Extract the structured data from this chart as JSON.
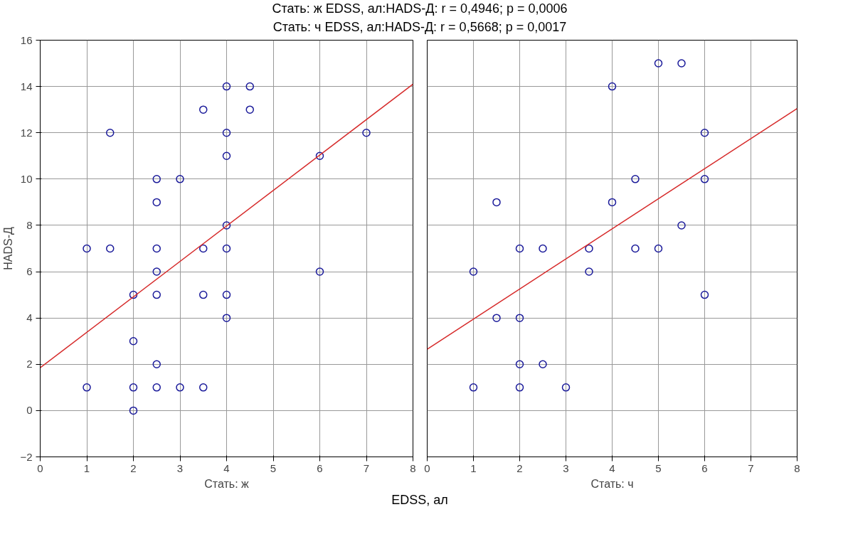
{
  "chart_data": [
    {
      "type": "scatter",
      "title": "Стать: ж  EDSS,  ал:HADS-Д:   r = 0,4946; p = 0,0006",
      "subtitle": "Стать: ч  EDSS,  ал:HADS-Д:   r = 0,5668; p = 0,0017",
      "xlabel": "Стать: ж",
      "ylabel": "HADS-Д",
      "annotations": [
        "EDSS,  ал"
      ],
      "xlim": [
        0,
        8
      ],
      "ylim": [
        -2,
        16
      ],
      "xticks": [
        0,
        1,
        2,
        3,
        4,
        5,
        6,
        7,
        8
      ],
      "yticks": [
        -2,
        0,
        2,
        4,
        6,
        8,
        10,
        12,
        14,
        16
      ],
      "grid": true,
      "series": [
        {
          "marker": "circle",
          "color": "#1a1a9a",
          "x": [
            1,
            1.5,
            1.5,
            1,
            2,
            2,
            2,
            2,
            2.5,
            2.5,
            2.5,
            2.5,
            2.5,
            2.5,
            2.5,
            3,
            3,
            3.5,
            3.5,
            3.5,
            3.5,
            4,
            4,
            4,
            4,
            4,
            4,
            4,
            4.5,
            4.5,
            6,
            6,
            7
          ],
          "values": [
            7,
            7,
            12,
            1,
            5,
            3,
            1,
            0,
            10,
            9,
            7,
            6,
            5,
            2,
            1,
            10,
            1,
            13,
            7,
            5,
            1,
            14,
            12,
            11,
            8,
            7,
            5,
            4,
            14,
            13,
            11,
            6,
            12
          ]
        },
        {
          "type": "line",
          "marker": "none",
          "color": "#d62a2a",
          "x": [
            0,
            8
          ],
          "values": [
            1.85,
            14.1
          ]
        }
      ]
    },
    {
      "type": "scatter",
      "xlabel": "Стать: ч",
      "xlim": [
        0,
        8
      ],
      "ylim": [
        -2,
        16
      ],
      "xticks": [
        0,
        1,
        2,
        3,
        4,
        5,
        6,
        7,
        8
      ],
      "yticks": [
        -2,
        0,
        2,
        4,
        6,
        8,
        10,
        12,
        14,
        16
      ],
      "tick_labels": "x",
      "grid": true,
      "series": [
        {
          "marker": "circle",
          "color": "#1a1a9a",
          "x": [
            1,
            1,
            1.5,
            1.5,
            2,
            2,
            2,
            2,
            2.5,
            2.5,
            3,
            3.5,
            3.5,
            4,
            4,
            4.5,
            4.5,
            5,
            5,
            5.5,
            5.5,
            6,
            6,
            6
          ],
          "values": [
            6,
            1,
            9,
            4,
            7,
            4,
            2,
            1,
            7,
            2,
            1,
            7,
            6,
            14,
            9,
            10,
            7,
            15,
            7,
            15,
            8,
            12,
            10,
            5
          ]
        },
        {
          "type": "line",
          "marker": "none",
          "color": "#d62a2a",
          "x": [
            0,
            8
          ],
          "values": [
            2.65,
            13.05
          ]
        }
      ]
    }
  ]
}
